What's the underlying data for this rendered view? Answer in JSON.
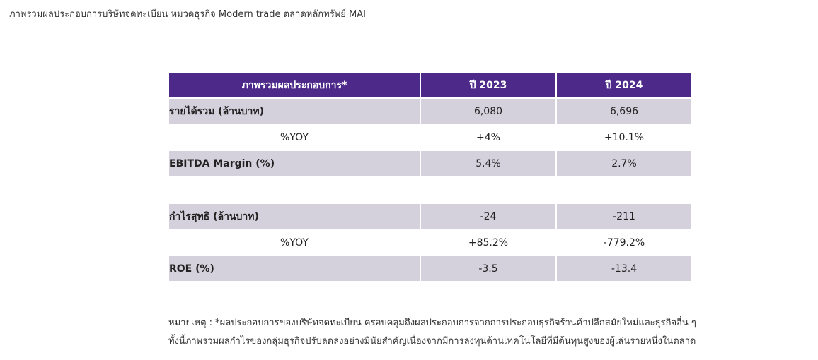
{
  "header": {
    "title": "ภาพรวมผลประกอบการบริษัทจดทะเบียน  หมวดธุรกิจ Modern trade ตลาดหลักทรัพย์ MAI"
  },
  "table": {
    "columns": [
      "ภาพรวมผลประกอบการ*",
      "ปี 2023",
      "ปี 2024"
    ],
    "rows": [
      {
        "label": "รายได้รวม (ล้านบาท)",
        "v2023": "6,080",
        "v2024": "6,696"
      },
      {
        "label": "%YOY",
        "v2023": "+4%",
        "v2024": "+10.1%"
      },
      {
        "label": "EBITDA Margin (%)",
        "v2023": "5.4%",
        "v2024": "2.7%"
      },
      {
        "label": "กำไรสุทธิ (ล้านบาท)",
        "v2023": "-24",
        "v2024": "-211"
      },
      {
        "label": "%YOY",
        "v2023": "+85.2%",
        "v2024": "-779.2%"
      },
      {
        "label": "ROE (%)",
        "v2023": "-3.5",
        "v2024": "-13.4"
      }
    ]
  },
  "footnote": {
    "line1": "หมายเหตุ : *ผลประกอบการของบริษัทจดทะเบียน  ครอบคลุมถึงผลประกอบการจากการประกอบธุรกิจร้านค้าปลีกสมัยใหม่และธุรกิจอื่น  ๆ",
    "line2": "ทั้งนี้ภาพรวมผลกำไรของกลุ่มธุรกิจปรับลดลงอย่างมีนัยสำคัญเนื่องจากมีการลงทุนด้านเทคโนโลยีที่มีต้นทุนสูงของผู้เล่นรายหนึ่งในตลาด"
  },
  "colors": {
    "header_bg": "#4d2a8a",
    "shaded_row": "#d5d1dc"
  }
}
